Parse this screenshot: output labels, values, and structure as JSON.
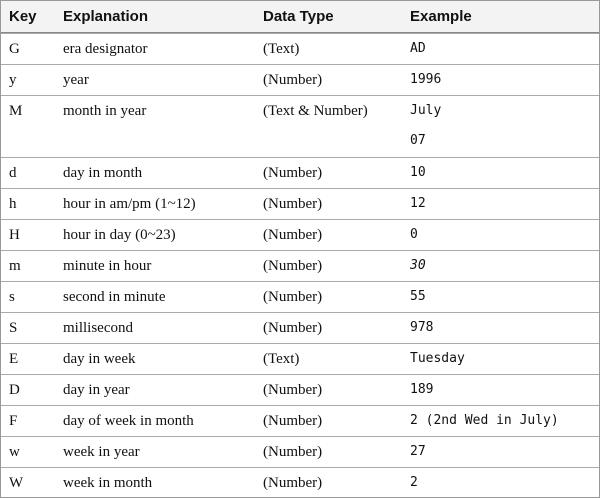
{
  "table": {
    "header": [
      "Key",
      "Explanation",
      "Data Type",
      "Example"
    ],
    "rows": [
      [
        "G",
        "era designator",
        "(Text)",
        [
          "AD"
        ]
      ],
      [
        "y",
        "year",
        "(Number)",
        [
          "1996"
        ]
      ],
      [
        "M",
        "month in year",
        "(Text & Number)",
        [
          "July",
          "07"
        ]
      ],
      [
        "d",
        "day in month",
        "(Number)",
        [
          "10"
        ]
      ],
      [
        "h",
        "hour in am/pm (1~12)",
        "(Number)",
        [
          "12"
        ]
      ],
      [
        "H",
        "hour in day (0~23)",
        "(Number)",
        [
          "0"
        ]
      ],
      [
        "m",
        "minute in hour",
        "(Number)",
        [
          "30"
        ]
      ],
      [
        "s",
        "second in minute",
        "(Number)",
        [
          "55"
        ]
      ],
      [
        "S",
        "millisecond",
        "(Number)",
        [
          "978"
        ]
      ],
      [
        "E",
        "day in week",
        "(Text)",
        [
          "Tuesday"
        ]
      ],
      [
        "D",
        "day in year",
        "(Number)",
        [
          "189"
        ]
      ],
      [
        "F",
        "day of week in month",
        "(Number)",
        [
          "2 (2nd Wed in July)"
        ]
      ],
      [
        "w",
        "week in year",
        "(Number)",
        [
          "27"
        ]
      ],
      [
        "W",
        "week in month",
        "(Number)",
        [
          "2"
        ]
      ]
    ]
  }
}
